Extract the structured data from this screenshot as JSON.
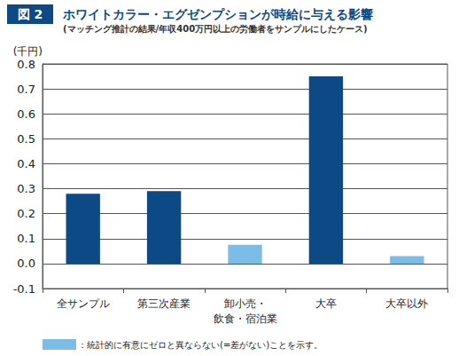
{
  "chart_data": {
    "type": "bar",
    "figure_label": "図 2",
    "title": "ホワイトカラー・エグゼンプションが時給に与える影響",
    "subtitle": "(マッチング推計の結果/年収400万円以上の労働者をサンプルにしたケース)",
    "ylabel": "(千円)",
    "categories": [
      "全サンプル",
      "第三次産業",
      "卸小売・\n飲食・宿泊業",
      "大卒",
      "大卒以外"
    ],
    "values": [
      0.28,
      0.29,
      0.075,
      0.75,
      0.03
    ],
    "colors": [
      "#0d4a85",
      "#0d4a85",
      "#7cbde8",
      "#0d4a85",
      "#7cbde8"
    ],
    "ylim": [
      -0.1,
      0.8
    ],
    "yticks": [
      -0.1,
      {
        "value": 0,
        "label": "0.0"
      },
      0.1,
      0.2,
      0.3,
      0.4,
      0.5,
      0.6,
      0.7,
      0.8
    ],
    "grid": true,
    "annotations": [
      {
        "text": "：統計的に有意にゼロと異ならない(=差がない)ことを示す。",
        "color": "#7cbde8"
      }
    ]
  }
}
